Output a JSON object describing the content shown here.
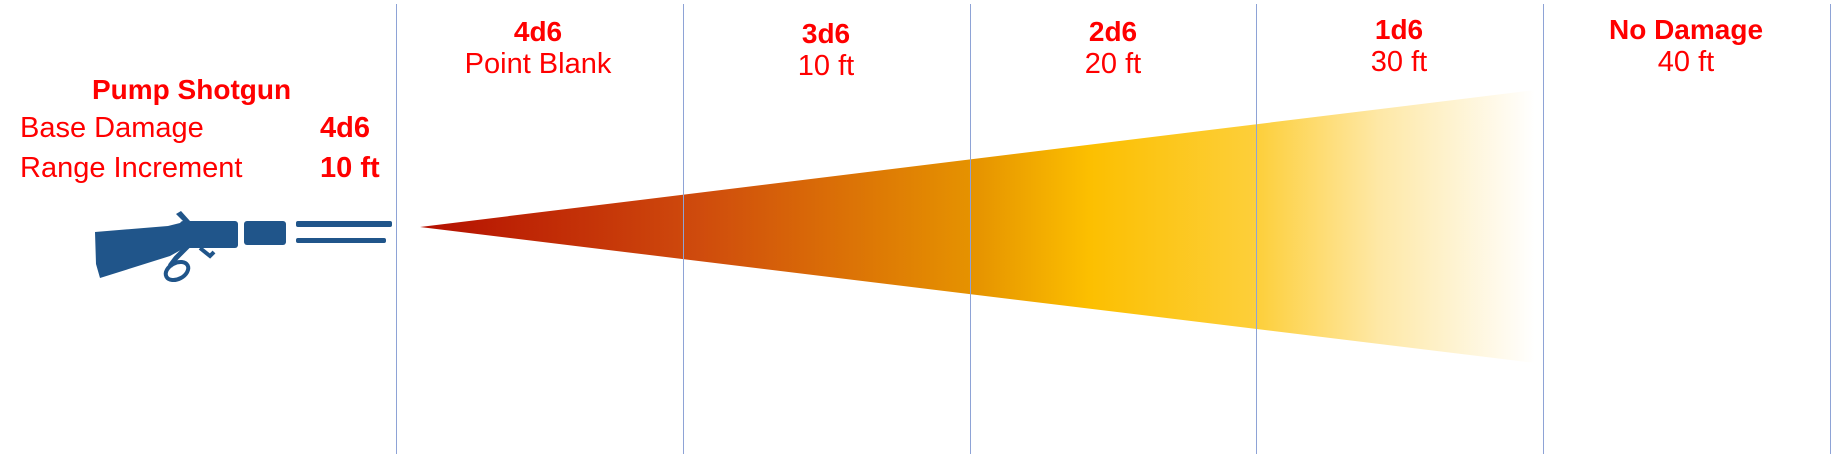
{
  "weapon": {
    "name": "Pump Shotgun",
    "base_damage_label": "Base Damage",
    "base_damage_value": "4d6",
    "range_increment_label": "Range Increment",
    "range_increment_value": "10 ft",
    "icon": "shotgun-icon"
  },
  "zones": [
    {
      "damage": "4d6",
      "range": "Point Blank"
    },
    {
      "damage": "3d6",
      "range": "10 ft"
    },
    {
      "damage": "2d6",
      "range": "20 ft"
    },
    {
      "damage": "1d6",
      "range": "30 ft"
    },
    {
      "damage": "No Damage",
      "range": "40 ft"
    }
  ],
  "colors": {
    "text": "#ff0000",
    "divider": "#8ea3d6",
    "weapon": "#20558a",
    "cone_start": "#b40f00",
    "cone_mid": "#fcbf00",
    "cone_end": "#ffffff"
  }
}
